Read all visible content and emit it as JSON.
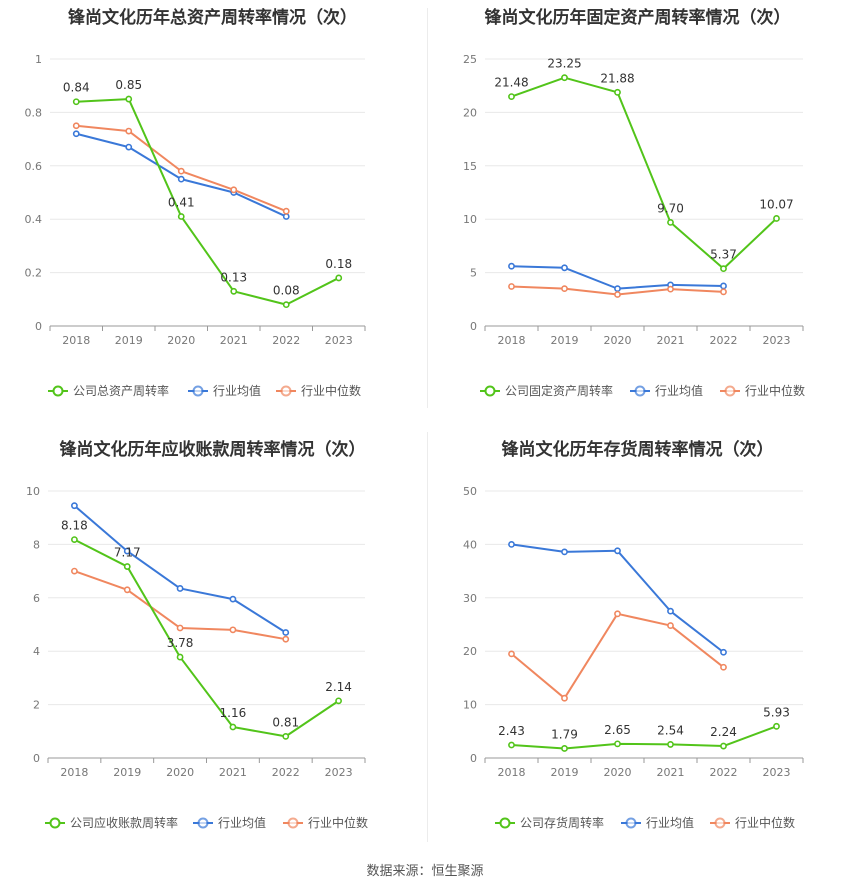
{
  "source_label": "数据来源：恒生聚源",
  "colors": {
    "company": "#52c41a",
    "average": "#3a78d8",
    "median": "#f0875f"
  },
  "chart_data": [
    {
      "type": "line",
      "title": "锋尚文化历年总资产周转率情况（次）",
      "categories": [
        "2018",
        "2019",
        "2020",
        "2021",
        "2022",
        "2023"
      ],
      "ylim": [
        0,
        1
      ],
      "yticks": [
        0,
        0.2,
        0.4,
        0.6,
        0.8,
        1
      ],
      "ytick_labels": [
        "0",
        "0.2",
        "0.4",
        "0.6",
        "0.8",
        "1"
      ],
      "grid": true,
      "legend_position": "bottom",
      "series": [
        {
          "name": "公司总资产周转率",
          "color": "#52c41a",
          "values": [
            0.84,
            0.85,
            0.41,
            0.13,
            0.08,
            0.18
          ],
          "labels": [
            "0.84",
            "0.85",
            "0.41",
            "0.13",
            "0.08",
            "0.18"
          ]
        },
        {
          "name": "行业均值",
          "color": "#3a78d8",
          "values": [
            0.72,
            0.67,
            0.55,
            0.5,
            0.41,
            null
          ]
        },
        {
          "name": "行业中位数",
          "color": "#f0875f",
          "values": [
            0.75,
            0.73,
            0.58,
            0.51,
            0.43,
            null
          ]
        }
      ]
    },
    {
      "type": "line",
      "title": "锋尚文化历年固定资产周转率情况（次）",
      "categories": [
        "2018",
        "2019",
        "2020",
        "2021",
        "2022",
        "2023"
      ],
      "ylim": [
        0,
        25
      ],
      "yticks": [
        0,
        5,
        10,
        15,
        20,
        25
      ],
      "ytick_labels": [
        "0",
        "5",
        "10",
        "15",
        "20",
        "25"
      ],
      "grid": true,
      "legend_position": "bottom",
      "series": [
        {
          "name": "公司固定资产周转率",
          "color": "#52c41a",
          "values": [
            21.48,
            23.25,
            21.88,
            9.7,
            5.37,
            10.07
          ],
          "labels": [
            "21.48",
            "23.25",
            "21.88",
            "9.70",
            "5.37",
            "10.07"
          ]
        },
        {
          "name": "行业均值",
          "color": "#3a78d8",
          "values": [
            5.6,
            5.45,
            3.5,
            3.85,
            3.75,
            null
          ]
        },
        {
          "name": "行业中位数",
          "color": "#f0875f",
          "values": [
            3.7,
            3.5,
            2.95,
            3.45,
            3.2,
            null
          ]
        }
      ]
    },
    {
      "type": "line",
      "title": "锋尚文化历年应收账款周转率情况（次）",
      "categories": [
        "2018",
        "2019",
        "2020",
        "2021",
        "2022",
        "2023"
      ],
      "ylim": [
        0,
        10
      ],
      "yticks": [
        0,
        2,
        4,
        6,
        8,
        10
      ],
      "ytick_labels": [
        "0",
        "2",
        "4",
        "6",
        "8",
        "10"
      ],
      "grid": true,
      "legend_position": "bottom",
      "series": [
        {
          "name": "公司应收账款周转率",
          "color": "#52c41a",
          "values": [
            8.18,
            7.17,
            3.78,
            1.16,
            0.81,
            2.14
          ],
          "labels": [
            "8.18",
            "7.17",
            "3.78",
            "1.16",
            "0.81",
            "2.14"
          ]
        },
        {
          "name": "行业均值",
          "color": "#3a78d8",
          "values": [
            9.45,
            7.75,
            6.35,
            5.95,
            4.7,
            null
          ]
        },
        {
          "name": "行业中位数",
          "color": "#f0875f",
          "values": [
            7.0,
            6.3,
            4.87,
            4.8,
            4.45,
            null
          ]
        }
      ]
    },
    {
      "type": "line",
      "title": "锋尚文化历年存货周转率情况（次）",
      "categories": [
        "2018",
        "2019",
        "2020",
        "2021",
        "2022",
        "2023"
      ],
      "ylim": [
        0,
        50
      ],
      "yticks": [
        0,
        10,
        20,
        30,
        40,
        50
      ],
      "ytick_labels": [
        "0",
        "10",
        "20",
        "30",
        "40",
        "50"
      ],
      "grid": true,
      "legend_position": "bottom",
      "series": [
        {
          "name": "公司存货周转率",
          "color": "#52c41a",
          "values": [
            2.43,
            1.79,
            2.65,
            2.54,
            2.24,
            5.93
          ],
          "labels": [
            "2.43",
            "1.79",
            "2.65",
            "2.54",
            "2.24",
            "5.93"
          ]
        },
        {
          "name": "行业均值",
          "color": "#3a78d8",
          "values": [
            40.0,
            38.6,
            38.8,
            27.5,
            19.8,
            null
          ]
        },
        {
          "name": "行业中位数",
          "color": "#f0875f",
          "values": [
            19.5,
            11.2,
            27.0,
            24.8,
            17.0,
            null
          ]
        }
      ]
    }
  ]
}
